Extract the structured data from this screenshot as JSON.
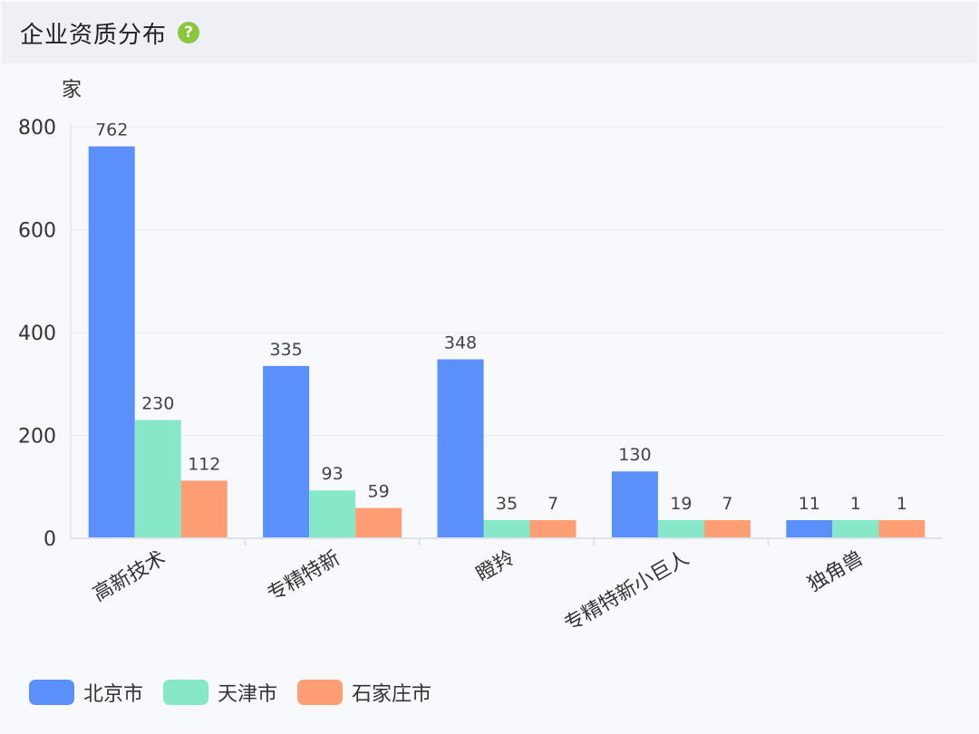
{
  "header": {
    "title": "企业资质分布",
    "help_glyph": "?"
  },
  "chart_data": {
    "type": "bar",
    "ylabel": "家",
    "ylim": [
      0,
      800
    ],
    "yticks": [
      0,
      200,
      400,
      600,
      800
    ],
    "categories": [
      "高新技术",
      "专精特新",
      "瞪羚",
      "专精特新小巨人",
      "独角兽"
    ],
    "series": [
      {
        "name": "北京市",
        "color": "#5b8ff9",
        "values": [
          762,
          335,
          348,
          130,
          11
        ]
      },
      {
        "name": "天津市",
        "color": "#86e8c6",
        "values": [
          230,
          93,
          35,
          19,
          1
        ]
      },
      {
        "name": "石家庄市",
        "color": "#ff9e75",
        "values": [
          112,
          59,
          7,
          7,
          1
        ]
      }
    ],
    "grid": true,
    "legend_position": "bottom-left"
  }
}
